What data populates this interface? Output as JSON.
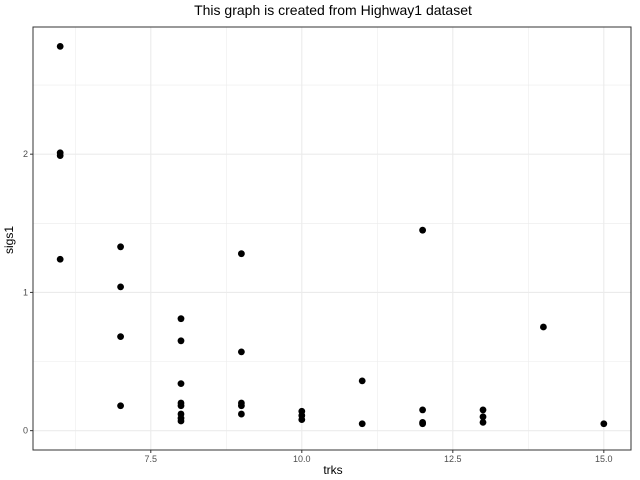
{
  "chart_data": {
    "type": "scatter",
    "title": "This graph is created from Highway1 dataset",
    "xlabel": "trks",
    "ylabel": "sigs1",
    "xlim": [
      5.55,
      15.45
    ],
    "ylim": [
      -0.14,
      2.92
    ],
    "x_ticks": [
      7.5,
      10.0,
      12.5,
      15.0
    ],
    "x_tick_labels": [
      "7.5",
      "10.0",
      "12.5",
      "15.0"
    ],
    "y_ticks": [
      0,
      1,
      2
    ],
    "y_tick_labels": [
      "0",
      "1",
      "2"
    ],
    "grid": true,
    "theme": "bw",
    "point_color": "#000000",
    "points": [
      {
        "x": 6,
        "y": 2.78
      },
      {
        "x": 6,
        "y": 2.01
      },
      {
        "x": 6,
        "y": 1.99
      },
      {
        "x": 6,
        "y": 1.24
      },
      {
        "x": 7,
        "y": 1.33
      },
      {
        "x": 7,
        "y": 1.04
      },
      {
        "x": 7,
        "y": 0.68
      },
      {
        "x": 7,
        "y": 0.18
      },
      {
        "x": 8,
        "y": 0.81
      },
      {
        "x": 8,
        "y": 0.65
      },
      {
        "x": 8,
        "y": 0.34
      },
      {
        "x": 8,
        "y": 0.2
      },
      {
        "x": 8,
        "y": 0.18
      },
      {
        "x": 8,
        "y": 0.12
      },
      {
        "x": 8,
        "y": 0.09
      },
      {
        "x": 8,
        "y": 0.07
      },
      {
        "x": 9,
        "y": 1.28
      },
      {
        "x": 9,
        "y": 0.57
      },
      {
        "x": 9,
        "y": 0.2
      },
      {
        "x": 9,
        "y": 0.18
      },
      {
        "x": 9,
        "y": 0.12
      },
      {
        "x": 10,
        "y": 0.14
      },
      {
        "x": 10,
        "y": 0.11
      },
      {
        "x": 10,
        "y": 0.08
      },
      {
        "x": 11,
        "y": 0.36
      },
      {
        "x": 11,
        "y": 0.05
      },
      {
        "x": 12,
        "y": 1.45
      },
      {
        "x": 12,
        "y": 0.15
      },
      {
        "x": 12,
        "y": 0.06
      },
      {
        "x": 12,
        "y": 0.05
      },
      {
        "x": 13,
        "y": 0.15
      },
      {
        "x": 13,
        "y": 0.1
      },
      {
        "x": 13,
        "y": 0.06
      },
      {
        "x": 14,
        "y": 0.75
      },
      {
        "x": 15,
        "y": 0.05
      }
    ]
  }
}
